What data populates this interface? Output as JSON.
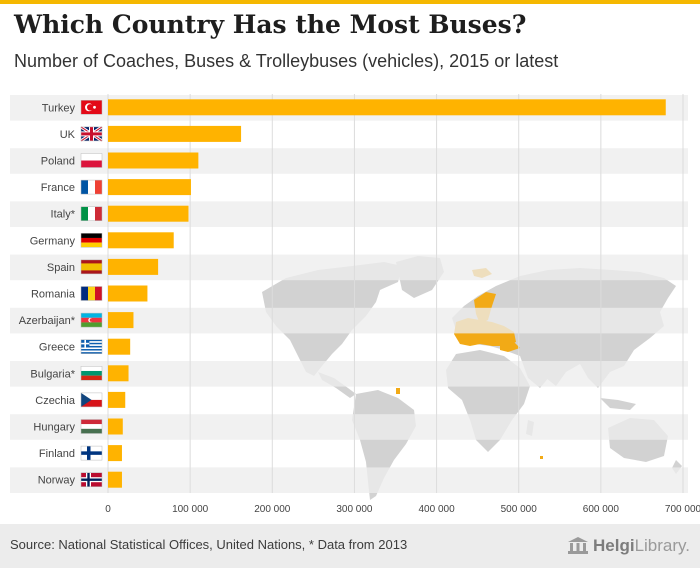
{
  "title": "Which Country Has the Most Buses?",
  "subtitle": "Number of Coaches, Buses & Trolleybuses (vehicles), 2015 or latest",
  "source": "Source: National Statistical Offices, United Nations, * Data from 2013",
  "logo": {
    "bold": "Helgi",
    "light": "Library."
  },
  "colors": {
    "bar": "#ffb300",
    "accent": "#f5b800",
    "map": "#cfcfcf",
    "map_highlight": "#f2a60a",
    "stripe": "#ededed"
  },
  "chart_data": {
    "type": "bar",
    "orientation": "horizontal",
    "title": "Which Country Has the Most Buses?",
    "subtitle": "Number of Coaches, Buses & Trolleybuses (vehicles), 2015 or latest",
    "categories": [
      "Turkey",
      "UK",
      "Poland",
      "France",
      "Italy*",
      "Germany",
      "Spain",
      "Romania",
      "Azerbaijan*",
      "Greece",
      "Bulgaria*",
      "Czechia",
      "Hungary",
      "Finland",
      "Norway"
    ],
    "flags": [
      "turkey-flag-icon",
      "uk-flag-icon",
      "poland-flag-icon",
      "france-flag-icon",
      "italy-flag-icon",
      "germany-flag-icon",
      "spain-flag-icon",
      "romania-flag-icon",
      "azerbaijan-flag-icon",
      "greece-flag-icon",
      "bulgaria-flag-icon",
      "czechia-flag-icon",
      "hungary-flag-icon",
      "finland-flag-icon",
      "norway-flag-icon"
    ],
    "values": [
      679000,
      162000,
      110000,
      101000,
      98000,
      80000,
      61000,
      48000,
      31000,
      27000,
      25000,
      21000,
      18000,
      17000,
      17000
    ],
    "xlim": [
      0,
      700000
    ],
    "xticks": [
      0,
      100000,
      200000,
      300000,
      400000,
      500000,
      600000,
      700000
    ],
    "xtick_labels": [
      "0",
      "100 000",
      "200 000",
      "300 000",
      "400 000",
      "500 000",
      "600 000",
      "700 000"
    ],
    "grid": true,
    "xlabel": "",
    "ylabel": ""
  }
}
